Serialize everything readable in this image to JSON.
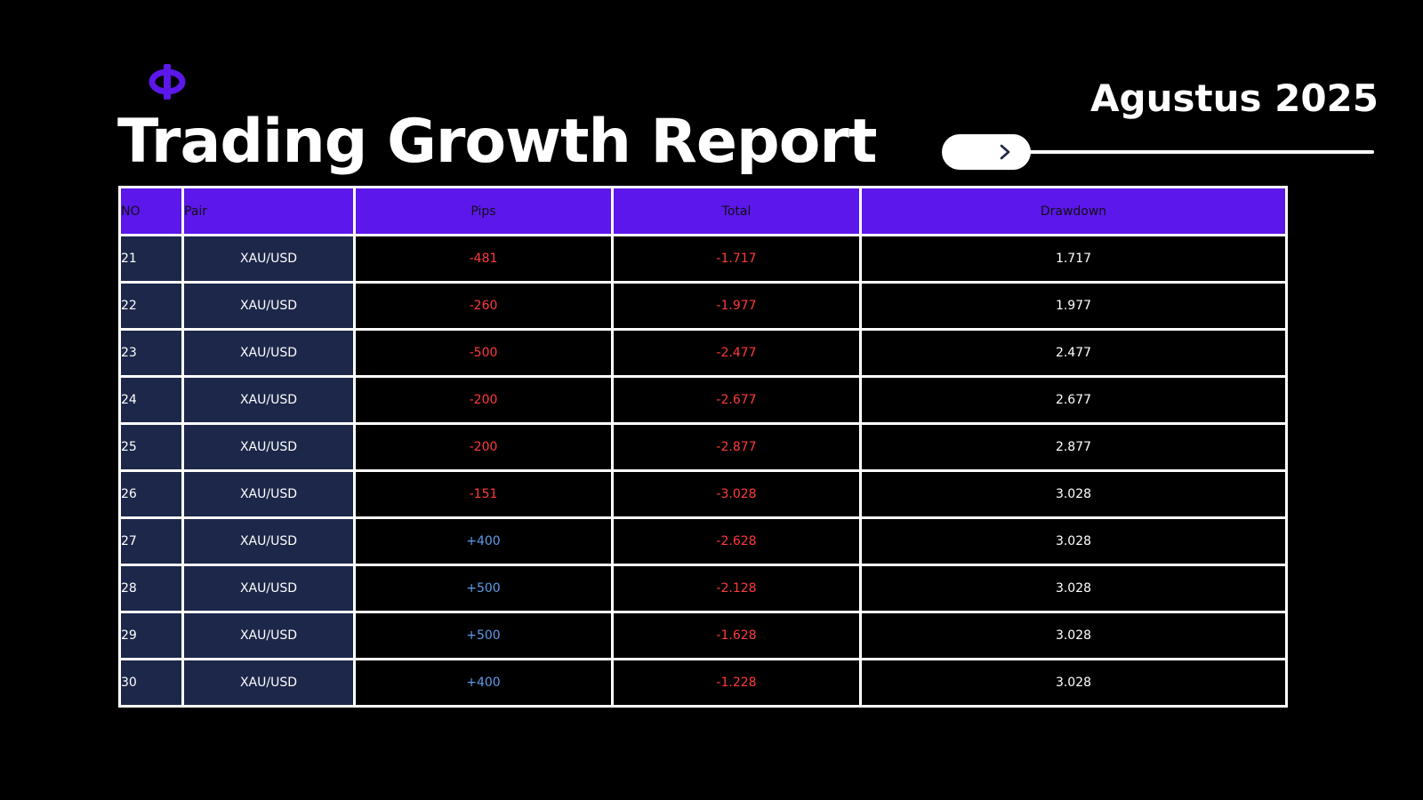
{
  "header": {
    "title": "Trading Growth Report",
    "period": "Agustus 2025",
    "logo_icon": "phi-logo-icon",
    "slider_icon": "chevron-right-icon"
  },
  "colors": {
    "accent": "#5c17ea",
    "cell_dark": "#1c2749",
    "negative": "#ff3b3b",
    "positive": "#5e9bea"
  },
  "table": {
    "headers": {
      "no": "NO",
      "pair": "Pair",
      "pips": "Pips",
      "total": "Total",
      "drawdown": "Drawdown"
    },
    "rows": [
      {
        "no": "21",
        "pair": "XAU/USD",
        "pips": "-481",
        "total": "-1.717",
        "drawdown": "1.717"
      },
      {
        "no": "22",
        "pair": "XAU/USD",
        "pips": "-260",
        "total": "-1.977",
        "drawdown": "1.977"
      },
      {
        "no": "23",
        "pair": "XAU/USD",
        "pips": "-500",
        "total": "-2.477",
        "drawdown": "2.477"
      },
      {
        "no": "24",
        "pair": "XAU/USD",
        "pips": "-200",
        "total": "-2.677",
        "drawdown": "2.677"
      },
      {
        "no": "25",
        "pair": "XAU/USD",
        "pips": "-200",
        "total": "-2.877",
        "drawdown": "2.877"
      },
      {
        "no": "26",
        "pair": "XAU/USD",
        "pips": "-151",
        "total": "-3.028",
        "drawdown": "3.028"
      },
      {
        "no": "27",
        "pair": "XAU/USD",
        "pips": "+400",
        "total": "-2.628",
        "drawdown": "3.028"
      },
      {
        "no": "28",
        "pair": "XAU/USD",
        "pips": "+500",
        "total": "-2.128",
        "drawdown": "3.028"
      },
      {
        "no": "29",
        "pair": "XAU/USD",
        "pips": "+500",
        "total": "-1.628",
        "drawdown": "3.028"
      },
      {
        "no": "30",
        "pair": "XAU/USD",
        "pips": "+400",
        "total": "-1.228",
        "drawdown": "3.028"
      }
    ]
  }
}
